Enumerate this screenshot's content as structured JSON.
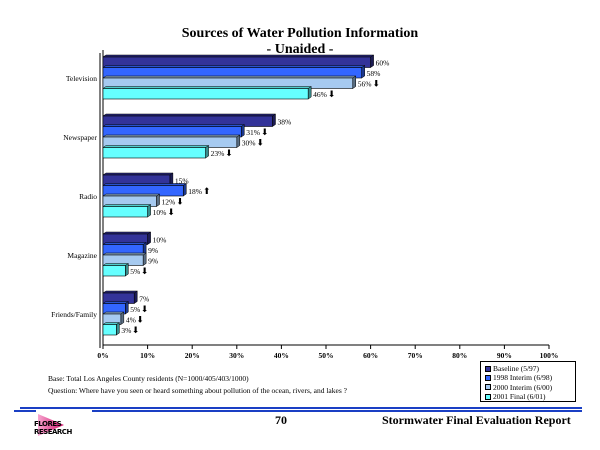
{
  "chart_data": {
    "type": "bar",
    "orientation": "horizontal",
    "title": "Sources of Water Pollution Information",
    "subtitle": "- Unaided -",
    "categories": [
      "Television",
      "Newspaper",
      "Radio",
      "Magazine",
      "Friends/Family"
    ],
    "series": [
      {
        "name": "Baseline (5/97)",
        "color": "#333399",
        "values": [
          60,
          38,
          15,
          10,
          7
        ],
        "labels": [
          "60%",
          "38%",
          "15%",
          "10%",
          "7%"
        ],
        "arrows": [
          "",
          "",
          "",
          "",
          ""
        ]
      },
      {
        "name": "1998 Interim (6/98)",
        "color": "#3366ff",
        "values": [
          58,
          31,
          18,
          9,
          5
        ],
        "labels": [
          "58%",
          "31%",
          "18%",
          "9%",
          "5%"
        ],
        "arrows": [
          "",
          "down",
          "up",
          "",
          "down"
        ]
      },
      {
        "name": "2000 Interim (6/00)",
        "color": "#a6caf0",
        "values": [
          56,
          30,
          12,
          9,
          4
        ],
        "labels": [
          "56%",
          "30%",
          "12%",
          "9%",
          "4%"
        ],
        "arrows": [
          "down",
          "down",
          "down",
          "",
          "down"
        ]
      },
      {
        "name": "2001 Final (6/01)",
        "color": "#66ffff",
        "values": [
          46,
          23,
          10,
          5,
          3
        ],
        "labels": [
          "46%",
          "23%",
          "10%",
          "5%",
          "3%"
        ],
        "arrows": [
          "down",
          "down",
          "down",
          "down",
          "down"
        ]
      }
    ],
    "xlim": [
      0,
      100
    ],
    "xticks": [
      "0%",
      "10%",
      "20%",
      "30%",
      "40%",
      "50%",
      "60%",
      "70%",
      "80%",
      "90%",
      "100%"
    ],
    "xlabel": "",
    "ylabel": "",
    "grid": false,
    "legend_position": "bottom-right"
  },
  "notes": {
    "base": "Base:  Total Los Angeles County residents (N=1000/405/403/1000)",
    "question": "Question:  Where have you seen or heard something about pollution of the ocean, rivers, and lakes ?"
  },
  "footer": {
    "page_number": "70",
    "report_title": "Stormwater Final Evaluation Report",
    "logo_text": "FLORES RESEARCH"
  }
}
